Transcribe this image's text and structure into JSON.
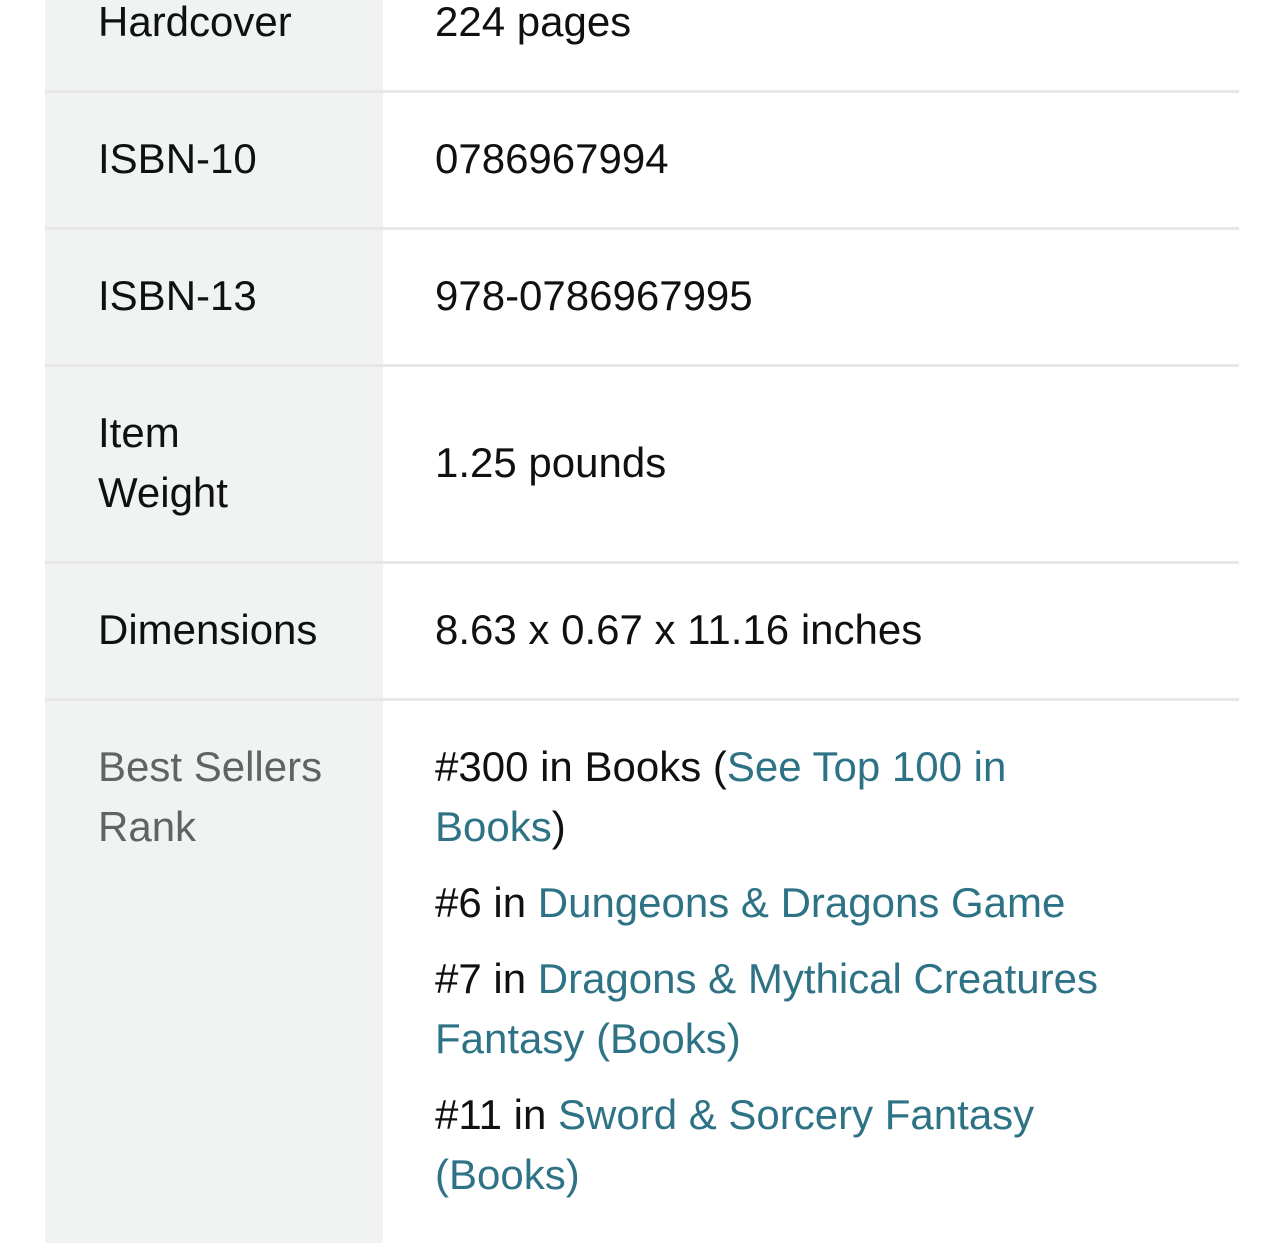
{
  "colors": {
    "text": "#0f1111",
    "muted_label": "#5f6363",
    "link": "#2e7385",
    "label_column_bg": "#f1f2f2",
    "divider": "#e7e7e7",
    "page_bg": "#ffffff"
  },
  "table": {
    "name": "product-details-table",
    "rows": [
      {
        "id": "binding",
        "label_lines": [
          "Hardcover"
        ],
        "label_muted": false,
        "value": "224 pages"
      },
      {
        "id": "isbn-10",
        "label_lines": [
          "ISBN-10"
        ],
        "label_muted": false,
        "value": "0786967994"
      },
      {
        "id": "isbn-13",
        "label_lines": [
          "ISBN-13"
        ],
        "label_muted": false,
        "value": "978-0786967995"
      },
      {
        "id": "item-weight",
        "label_lines": [
          "Item",
          "Weight"
        ],
        "label_muted": false,
        "value": "1.25 pounds"
      },
      {
        "id": "dimensions",
        "label_lines": [
          "Dimensions"
        ],
        "label_muted": false,
        "value": "8.63 x 0.67 x 11.16 inches"
      },
      {
        "id": "best-sellers-rank",
        "label_lines": [
          "Best Sellers",
          "Rank"
        ],
        "label_muted": true,
        "ranks": [
          {
            "prefix": "#300 in Books (",
            "link": "See Top 100 in Books",
            "suffix": ")"
          },
          {
            "prefix": "#6 in ",
            "link": "Dungeons & Dragons Game",
            "suffix": ""
          },
          {
            "prefix": "#7 in ",
            "link": "Dragons & Mythical Creatures Fantasy (Books)",
            "suffix": ""
          },
          {
            "prefix": "#11 in ",
            "link": "Sword & Sorcery Fantasy (Books)",
            "suffix": ""
          }
        ]
      }
    ]
  }
}
